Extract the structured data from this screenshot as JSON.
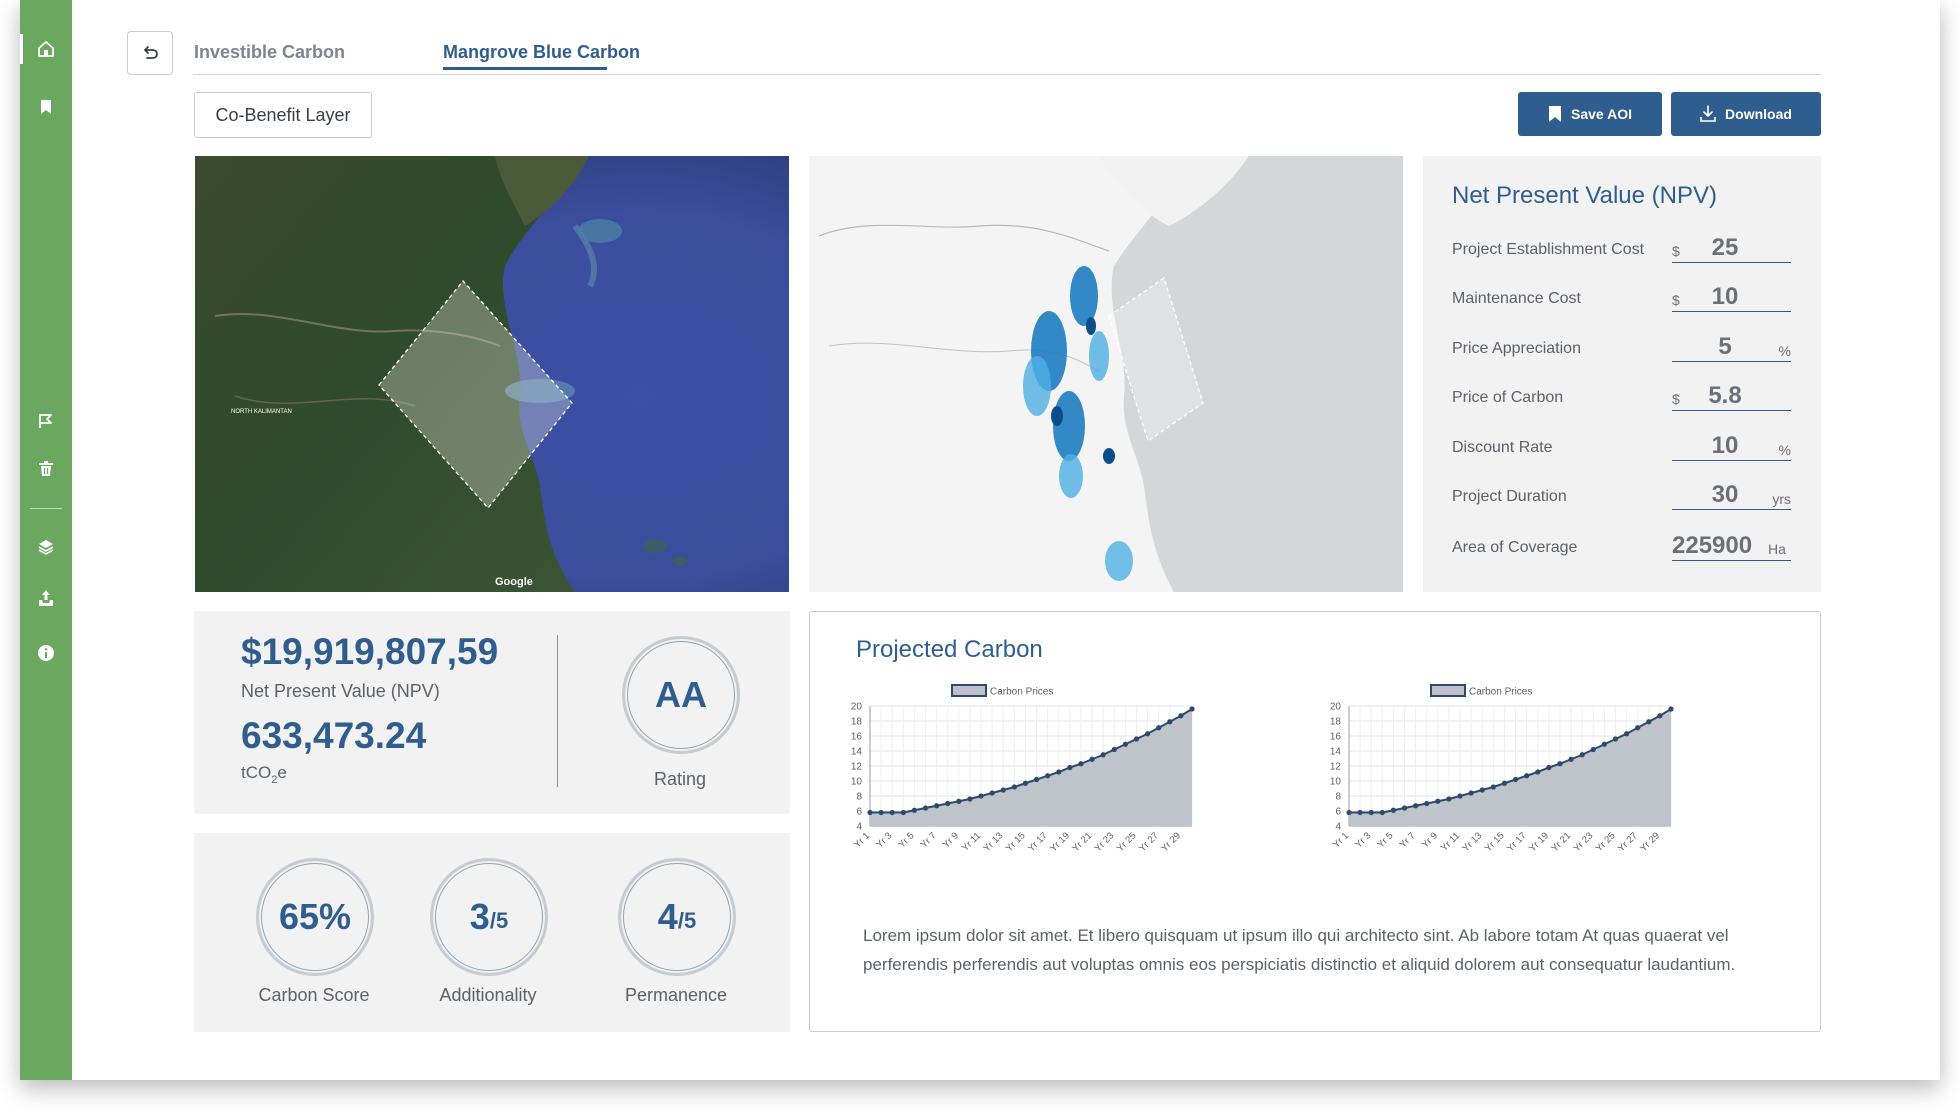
{
  "tabs": [
    {
      "label": "Investible Carbon",
      "active": false
    },
    {
      "label": "Mangrove Blue Carbon",
      "active": true
    }
  ],
  "toolbar": {
    "co_benefit_label": "Co-Benefit Layer",
    "save_label": "Save AOI",
    "download_label": "Download"
  },
  "maps": {
    "satellite": {
      "attribution": "Google",
      "place_labels": [
        "NORTH KALIMANTAN"
      ]
    }
  },
  "npv": {
    "title": "Net Present Value (NPV)",
    "rows": [
      {
        "label": "Project Establishment Cost",
        "prefix": "$",
        "value": "25",
        "suffix": ""
      },
      {
        "label": "Maintenance Cost",
        "prefix": "$",
        "value": "10",
        "suffix": ""
      },
      {
        "label": "Price Appreciation",
        "prefix": "",
        "value": "5",
        "suffix": "%"
      },
      {
        "label": "Price of Carbon",
        "prefix": "$",
        "value": "5.8",
        "suffix": ""
      },
      {
        "label": "Discount Rate",
        "prefix": "",
        "value": "10",
        "suffix": "%"
      },
      {
        "label": "Project Duration",
        "prefix": "",
        "value": "30",
        "suffix": "yrs"
      },
      {
        "label": "Area of Coverage",
        "prefix": "",
        "value": "225900",
        "suffix": "Ha"
      }
    ]
  },
  "summary": {
    "npv_value": "$19,919,807,59",
    "npv_label": "Net Present Value (NPV)",
    "carbon_value": "633,473.24",
    "carbon_unit_main": "tCO",
    "carbon_unit_sub": "2",
    "carbon_unit_end": "e",
    "rating_value": "AA",
    "rating_label": "Rating"
  },
  "scores": {
    "carbon_score_value": "65%",
    "carbon_score_label": "Carbon Score",
    "additionality_value": "3",
    "additionality_denominator": "/5",
    "additionality_label": "Additionality",
    "permanence_value": "4",
    "permanence_denominator": "/5",
    "permanence_label": "Permanence"
  },
  "projected": {
    "title": "Projected Carbon",
    "description": "Lorem ipsum dolor sit amet. Et libero quisquam ut ipsum illo qui architecto sint. Ab labore totam At quas quaerat vel perferendis perferendis aut voluptas omnis eos perspiciatis distinctio et aliquid dolorem aut consequatur laudantium."
  },
  "colors": {
    "sidebar": "#6aa75f",
    "primary": "#2f5e8e",
    "panel": "#f2f2f2",
    "chart_fill": "#bcc1c8",
    "chart_line": "#2d4a6e"
  },
  "chart_data": [
    {
      "type": "area",
      "x": [
        "Yr 1",
        "Yr 2",
        "Yr 3",
        "Yr 4",
        "Yr 5",
        "Yr 6",
        "Yr 7",
        "Yr 8",
        "Yr 9",
        "Yr 10",
        "Yr 11",
        "Yr 12",
        "Yr 13",
        "Yr 14",
        "Yr 15",
        "Yr 16",
        "Yr 17",
        "Yr 18",
        "Yr 19",
        "Yr 20",
        "Yr 21",
        "Yr 22",
        "Yr 23",
        "Yr 24",
        "Yr 25",
        "Yr 26",
        "Yr 27",
        "Yr 28",
        "Yr 29",
        "Yr 30"
      ],
      "tick_labels": [
        "Yr 1",
        "Yr 3",
        "Yr 5",
        "Yr 7",
        "Yr 9",
        "Yr 11",
        "Yr 13",
        "Yr 15",
        "Yr 17",
        "Yr 19",
        "Yr 21",
        "Yr 23",
        "Yr 25",
        "Yr 27",
        "Yr 29"
      ],
      "series": [
        {
          "name": "Carbon Prices",
          "values": [
            5.8,
            5.8,
            5.8,
            5.8,
            6.1,
            6.4,
            6.7,
            7.0,
            7.3,
            7.6,
            8.0,
            8.4,
            8.8,
            9.2,
            9.7,
            10.2,
            10.7,
            11.2,
            11.8,
            12.3,
            12.9,
            13.5,
            14.2,
            14.9,
            15.6,
            16.3,
            17.1,
            17.9,
            18.7,
            19.6
          ]
        }
      ],
      "title": "",
      "legend": "top-center",
      "ylim": [
        4,
        20
      ],
      "yticks": [
        4,
        6,
        8,
        10,
        12,
        14,
        16,
        18,
        20
      ],
      "grid": true
    },
    {
      "type": "area",
      "x": [
        "Yr 1",
        "Yr 2",
        "Yr 3",
        "Yr 4",
        "Yr 5",
        "Yr 6",
        "Yr 7",
        "Yr 8",
        "Yr 9",
        "Yr 10",
        "Yr 11",
        "Yr 12",
        "Yr 13",
        "Yr 14",
        "Yr 15",
        "Yr 16",
        "Yr 17",
        "Yr 18",
        "Yr 19",
        "Yr 20",
        "Yr 21",
        "Yr 22",
        "Yr 23",
        "Yr 24",
        "Yr 25",
        "Yr 26",
        "Yr 27",
        "Yr 28",
        "Yr 29",
        "Yr 30"
      ],
      "tick_labels": [
        "Yr 1",
        "Yr 3",
        "Yr 5",
        "Yr 7",
        "Yr 9",
        "Yr 11",
        "Yr 13",
        "Yr 15",
        "Yr 17",
        "Yr 19",
        "Yr 21",
        "Yr 23",
        "Yr 25",
        "Yr 27",
        "Yr 29"
      ],
      "series": [
        {
          "name": "Carbon Prices",
          "values": [
            5.8,
            5.8,
            5.8,
            5.8,
            6.1,
            6.4,
            6.7,
            7.0,
            7.3,
            7.6,
            8.0,
            8.4,
            8.8,
            9.2,
            9.7,
            10.2,
            10.7,
            11.2,
            11.8,
            12.3,
            12.9,
            13.5,
            14.2,
            14.9,
            15.6,
            16.3,
            17.1,
            17.9,
            18.7,
            19.6
          ]
        }
      ],
      "title": "",
      "legend": "top-center",
      "ylim": [
        4,
        20
      ],
      "yticks": [
        4,
        6,
        8,
        10,
        12,
        14,
        16,
        18,
        20
      ],
      "grid": true
    }
  ]
}
